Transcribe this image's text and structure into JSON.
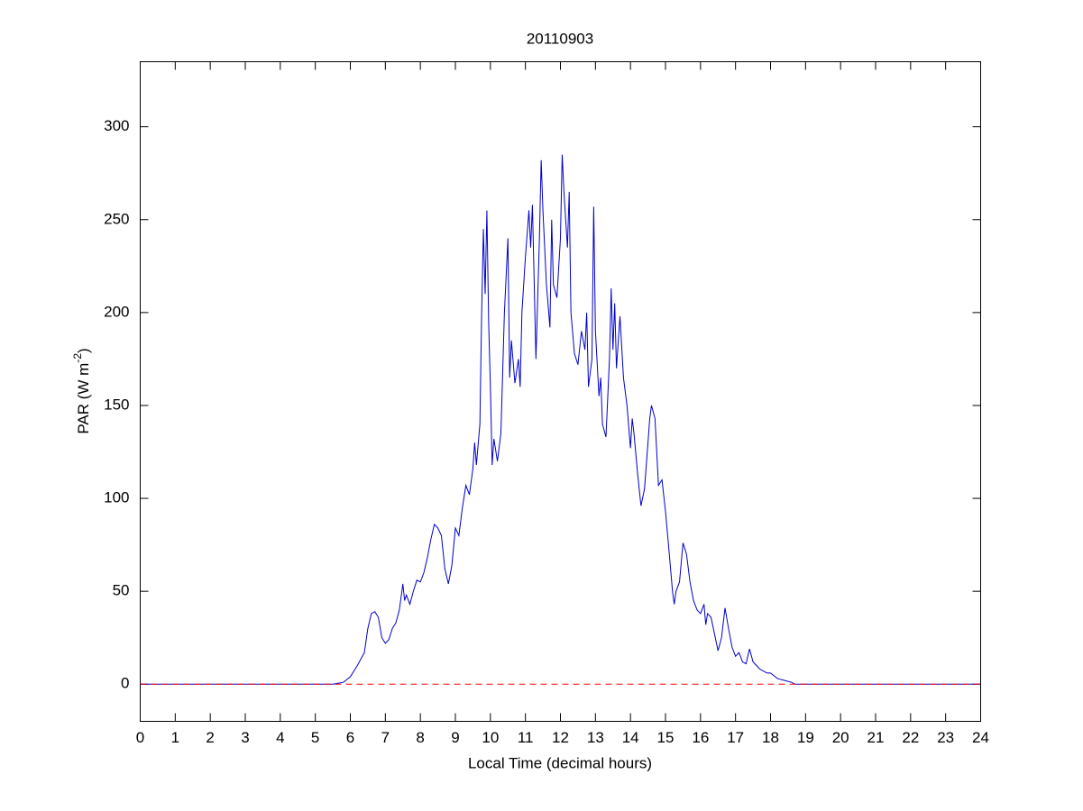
{
  "chart_data": {
    "type": "line",
    "title": "20110903",
    "xlabel": "Local Time (decimal hours)",
    "ylabel": [
      "PAR (W m",
      "-2",
      ")"
    ],
    "xlim": [
      0,
      24
    ],
    "ylim": [
      -20,
      335
    ],
    "xticks": [
      0,
      1,
      2,
      3,
      4,
      5,
      6,
      7,
      8,
      9,
      10,
      11,
      12,
      13,
      14,
      15,
      16,
      17,
      18,
      19,
      20,
      21,
      22,
      23,
      24
    ],
    "yticks": [
      0,
      50,
      100,
      150,
      200,
      250,
      300
    ],
    "reference_lines": [
      {
        "value": 0,
        "color": "#ff0000",
        "dash": true
      }
    ],
    "series": [
      {
        "color": "#0000cc",
        "x": [
          0,
          5.5,
          5.8,
          6.0,
          6.2,
          6.4,
          6.5,
          6.6,
          6.7,
          6.8,
          6.9,
          7.0,
          7.1,
          7.2,
          7.3,
          7.4,
          7.5,
          7.55,
          7.6,
          7.7,
          7.8,
          7.9,
          8.0,
          8.1,
          8.2,
          8.3,
          8.4,
          8.5,
          8.6,
          8.7,
          8.8,
          8.9,
          9.0,
          9.1,
          9.2,
          9.3,
          9.4,
          9.5,
          9.55,
          9.6,
          9.7,
          9.75,
          9.8,
          9.85,
          9.9,
          9.95,
          10.0,
          10.05,
          10.1,
          10.2,
          10.3,
          10.4,
          10.5,
          10.55,
          10.6,
          10.7,
          10.8,
          10.85,
          10.9,
          11.0,
          11.1,
          11.15,
          11.2,
          11.3,
          11.4,
          11.45,
          11.5,
          11.6,
          11.7,
          11.75,
          11.8,
          11.9,
          12.0,
          12.05,
          12.1,
          12.2,
          12.25,
          12.3,
          12.4,
          12.5,
          12.6,
          12.7,
          12.75,
          12.8,
          12.9,
          12.95,
          13.0,
          13.1,
          13.15,
          13.2,
          13.3,
          13.4,
          13.45,
          13.5,
          13.55,
          13.6,
          13.7,
          13.8,
          13.9,
          14.0,
          14.05,
          14.1,
          14.2,
          14.3,
          14.4,
          14.5,
          14.55,
          14.6,
          14.7,
          14.8,
          14.9,
          15.0,
          15.1,
          15.2,
          15.25,
          15.3,
          15.4,
          15.5,
          15.6,
          15.7,
          15.8,
          15.9,
          16.0,
          16.1,
          16.15,
          16.2,
          16.3,
          16.4,
          16.5,
          16.6,
          16.7,
          16.8,
          16.9,
          17.0,
          17.1,
          17.2,
          17.3,
          17.4,
          17.5,
          17.6,
          17.7,
          17.8,
          17.9,
          18.0,
          18.2,
          18.4,
          18.6,
          18.7,
          24
        ],
        "values": [
          0,
          0,
          1,
          4,
          10,
          17,
          30,
          38,
          39,
          36,
          25,
          22,
          24,
          30,
          33,
          40,
          54,
          45,
          48,
          43,
          50,
          56,
          55,
          60,
          68,
          78,
          86,
          84,
          80,
          62,
          54,
          64,
          84,
          80,
          95,
          107,
          102,
          116,
          130,
          118,
          140,
          200,
          245,
          210,
          255,
          195,
          160,
          118,
          132,
          120,
          135,
          200,
          240,
          165,
          185,
          162,
          175,
          160,
          200,
          230,
          255,
          235,
          258,
          175,
          240,
          282,
          255,
          215,
          192,
          250,
          215,
          208,
          240,
          285,
          265,
          235,
          265,
          200,
          178,
          172,
          190,
          180,
          200,
          160,
          175,
          257,
          190,
          155,
          165,
          140,
          133,
          175,
          213,
          180,
          205,
          170,
          198,
          165,
          150,
          127,
          143,
          135,
          114,
          96,
          105,
          130,
          143,
          150,
          143,
          107,
          110,
          93,
          72,
          50,
          43,
          50,
          55,
          76,
          70,
          55,
          45,
          40,
          38,
          43,
          32,
          38,
          36,
          27,
          18,
          25,
          41,
          30,
          20,
          15,
          17,
          12,
          11,
          19,
          12,
          10,
          8,
          7,
          6,
          6,
          3,
          2,
          1,
          0,
          0
        ]
      }
    ]
  }
}
